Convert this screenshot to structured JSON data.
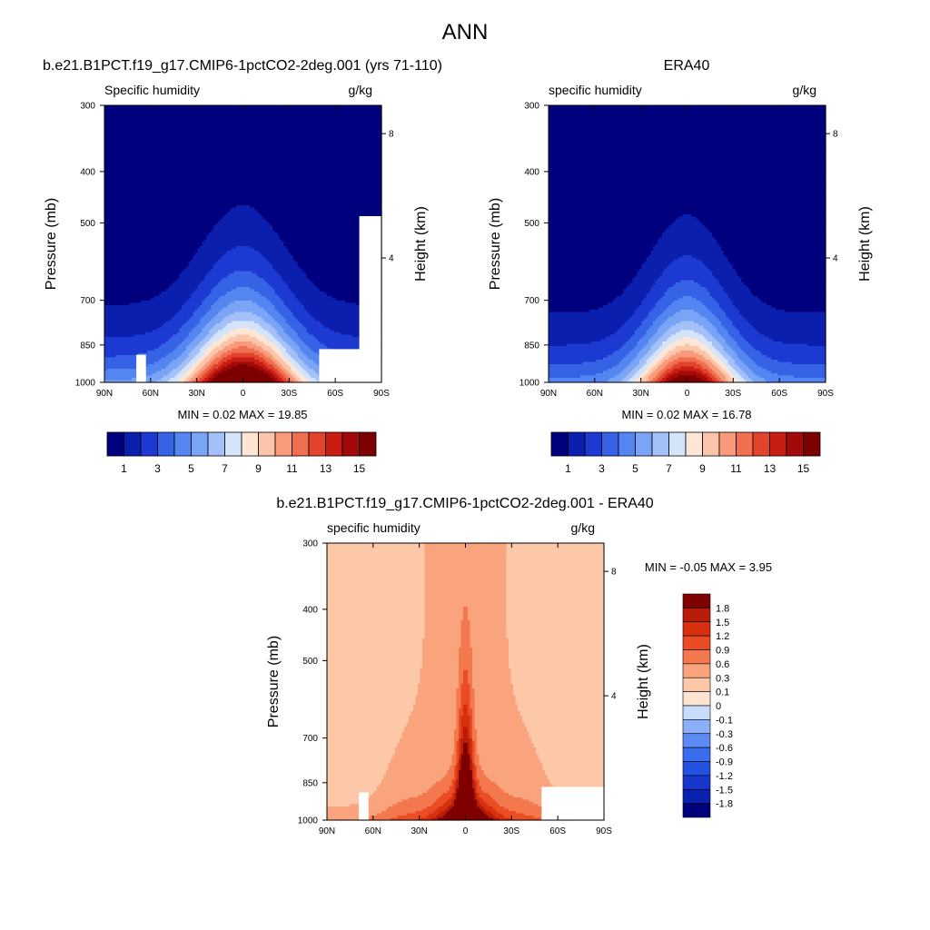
{
  "page_title": "ANN",
  "chart_data": [
    {
      "type": "contour",
      "title": "b.e21.B1PCT.f19_g17.CMIP6-1pctCO2-2deg.001 (yrs 71-110)",
      "left_label": "Specific humidity",
      "right_label": "g/kg",
      "ylabel": "Pressure (mb)",
      "y2label": "Height (km)",
      "x_ticks": [
        "90N",
        "60N",
        "30N",
        "0",
        "30S",
        "60S",
        "90S"
      ],
      "y_ticks": [
        "300",
        "400",
        "500",
        "700",
        "850",
        "1000"
      ],
      "y2_ticks": [
        "8",
        "4"
      ],
      "ylim": [
        1000,
        300
      ],
      "y_scale": "log",
      "stats": "MIN =   0.02  MAX =  19.85",
      "peak": 19.85,
      "width": 1.0,
      "levels": [
        1,
        2,
        3,
        4,
        5,
        6,
        7,
        8,
        9,
        10,
        11,
        12,
        13,
        14,
        15
      ],
      "colorbar_labels": [
        "1",
        "3",
        "5",
        "7",
        "9",
        "11",
        "13",
        "15"
      ]
    },
    {
      "type": "contour",
      "title": "ERA40",
      "left_label": "specific humidity",
      "right_label": "g/kg",
      "ylabel": "Pressure (mb)",
      "y2label": "Height (km)",
      "x_ticks": [
        "90N",
        "60N",
        "30N",
        "0",
        "30S",
        "60S",
        "90S"
      ],
      "y_ticks": [
        "300",
        "400",
        "500",
        "700",
        "850",
        "1000"
      ],
      "y2_ticks": [
        "8",
        "4"
      ],
      "ylim": [
        1000,
        300
      ],
      "y_scale": "log",
      "stats": "MIN =   0.02  MAX =  16.78",
      "peak": 16.78,
      "width": 0.9,
      "levels": [
        1,
        2,
        3,
        4,
        5,
        6,
        7,
        8,
        9,
        10,
        11,
        12,
        13,
        14,
        15
      ],
      "colorbar_labels": [
        "1",
        "3",
        "5",
        "7",
        "9",
        "11",
        "13",
        "15"
      ]
    },
    {
      "type": "contour",
      "title": "b.e21.B1PCT.f19_g17.CMIP6-1pctCO2-2deg.001 - ERA40",
      "left_label": "specific humidity",
      "right_label": "g/kg",
      "ylabel": "Pressure (mb)",
      "y2label": "Height (km)",
      "x_ticks": [
        "90N",
        "60N",
        "30N",
        "0",
        "30S",
        "60S",
        "90S"
      ],
      "y_ticks": [
        "300",
        "400",
        "500",
        "700",
        "850",
        "1000"
      ],
      "y2_ticks": [
        "8",
        "4"
      ],
      "ylim": [
        1000,
        300
      ],
      "y_scale": "log",
      "stats": "MIN =  -0.05  MAX =   3.95",
      "levels": [
        -1.8,
        -1.5,
        -1.2,
        -0.9,
        -0.6,
        -0.3,
        -0.1,
        0,
        0.1,
        0.3,
        0.6,
        0.9,
        1.2,
        1.5,
        1.8
      ],
      "colorbar_labels": [
        "1.8",
        "1.5",
        "1.2",
        "0.9",
        "0.6",
        "0.3",
        "0.1",
        "0",
        "-0.1",
        "-0.3",
        "-0.6",
        "-0.9",
        "-1.2",
        "-1.5",
        "-1.8"
      ]
    }
  ],
  "colors": {
    "abs_scale": [
      "#00007f",
      "#0b1fae",
      "#1c3ad1",
      "#3662e6",
      "#5585f0",
      "#7aa4f5",
      "#a3c1f8",
      "#d4e4fb",
      "#fde6d6",
      "#fcc4a8",
      "#f99a7b",
      "#ef6f50",
      "#e2432d",
      "#c91c12",
      "#a10a08",
      "#7c0000"
    ],
    "diff_scale": [
      "#00007f",
      "#0a21b0",
      "#1636cc",
      "#2351e0",
      "#3a6ded",
      "#5b8bf3",
      "#8bb0f7",
      "#c8dcfb",
      "#fde4d2",
      "#fcc8a8",
      "#f9a47c",
      "#f3784e",
      "#eb4c24",
      "#d6300e",
      "#b71d08",
      "#7f0000"
    ]
  }
}
